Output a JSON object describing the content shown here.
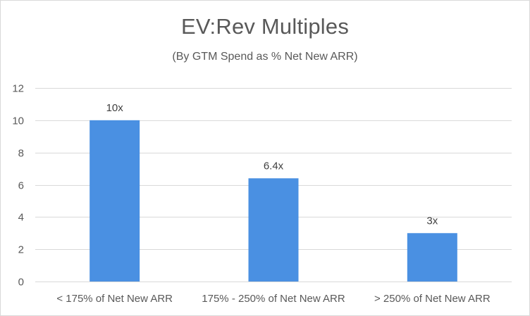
{
  "chart_data": {
    "type": "bar",
    "title": "EV:Rev Multiples",
    "subtitle": "(By GTM Spend as % Net New ARR)",
    "categories": [
      "< 175% of Net New ARR",
      "175% - 250% of Net New ARR",
      "> 250%  of Net New ARR"
    ],
    "values": [
      10,
      6.4,
      3
    ],
    "data_labels": [
      "10x",
      "6.4x",
      "3x"
    ],
    "ylim": [
      0,
      12
    ],
    "yticks": [
      0,
      2,
      4,
      6,
      8,
      10,
      12
    ],
    "grid": true,
    "legend": "none",
    "bar_color": "#4a90e2",
    "grid_color": "#d9d9d9"
  }
}
